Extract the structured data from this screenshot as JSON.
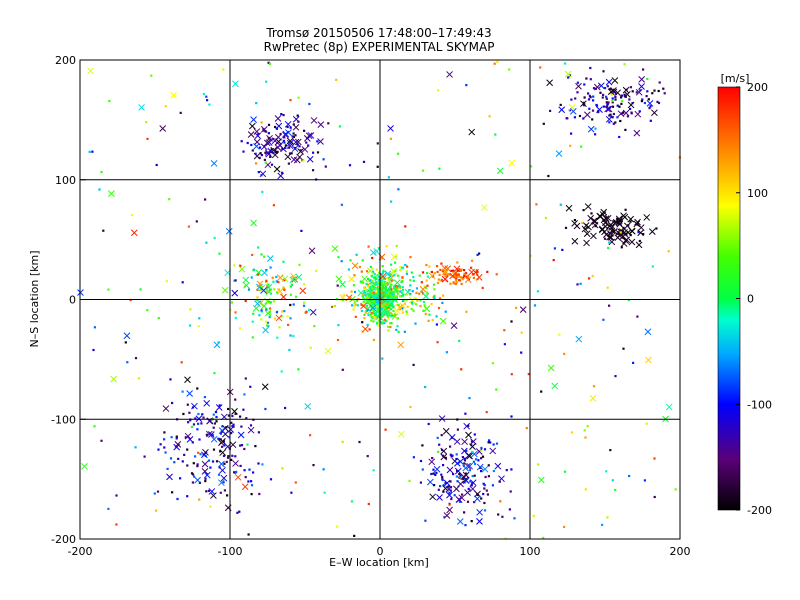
{
  "chart_data": {
    "type": "scatter",
    "title": "Tromsø 20150506 17:48:00–17:49:43",
    "subtitle": "RwPretec (8p) EXPERIMENTAL SKYMAP",
    "xlabel": "E–W location [km]",
    "ylabel": "N–S location [km]",
    "xlim": [
      -200,
      200
    ],
    "ylim": [
      -200,
      200
    ],
    "xticks": [
      -200,
      -100,
      0,
      100,
      200
    ],
    "yticks": [
      -200,
      -100,
      0,
      100,
      200
    ],
    "grid": true,
    "colorbar": {
      "label": "[m/s]",
      "min": -200,
      "max": 200,
      "ticks": [
        200,
        100,
        0,
        -100,
        -200
      ],
      "placement": "right"
    },
    "marker_types": [
      "dot",
      "cross"
    ],
    "clusters": [
      {
        "region": "center",
        "x": [
          -15,
          15
        ],
        "y": [
          -25,
          30
        ],
        "n_dots": 420,
        "n_crosses": 30,
        "velocity": [
          -40,
          60
        ]
      },
      {
        "region": "center-ring",
        "x": [
          -45,
          55
        ],
        "y": [
          -45,
          55
        ],
        "n_dots": 220,
        "n_crosses": 40,
        "velocity": [
          -60,
          180
        ]
      },
      {
        "region": "east-band",
        "x": [
          20,
          80
        ],
        "y": [
          5,
          35
        ],
        "n_dots": 80,
        "n_crosses": 12,
        "velocity": [
          120,
          200
        ]
      },
      {
        "region": "north-west-arc",
        "x": [
          -105,
          -25
        ],
        "y": [
          95,
          165
        ],
        "n_dots": 70,
        "n_crosses": 55,
        "velocity": [
          -200,
          -80
        ]
      },
      {
        "region": "north-east-corner",
        "x": [
          105,
          200
        ],
        "y": [
          130,
          200
        ],
        "n_dots": 110,
        "n_crosses": 30,
        "velocity": [
          -200,
          -80
        ]
      },
      {
        "region": "east-patch",
        "x": [
          110,
          195
        ],
        "y": [
          35,
          85
        ],
        "n_dots": 20,
        "n_crosses": 70,
        "velocity": [
          -200,
          -180
        ]
      },
      {
        "region": "south-west",
        "x": [
          -160,
          -65
        ],
        "y": [
          -190,
          -55
        ],
        "n_dots": 140,
        "n_crosses": 45,
        "velocity": [
          -200,
          -60
        ]
      },
      {
        "region": "south-middle",
        "x": [
          15,
          95
        ],
        "y": [
          -200,
          -85
        ],
        "n_dots": 120,
        "n_crosses": 55,
        "velocity": [
          -200,
          -60
        ]
      },
      {
        "region": "west-middle",
        "x": [
          -110,
          -40
        ],
        "y": [
          -50,
          55
        ],
        "n_dots": 90,
        "n_crosses": 30,
        "velocity": [
          -80,
          200
        ]
      },
      {
        "region": "background",
        "x": [
          -200,
          200
        ],
        "y": [
          -200,
          200
        ],
        "n_dots": 260,
        "n_crosses": 50,
        "velocity": [
          -200,
          200
        ]
      }
    ]
  }
}
